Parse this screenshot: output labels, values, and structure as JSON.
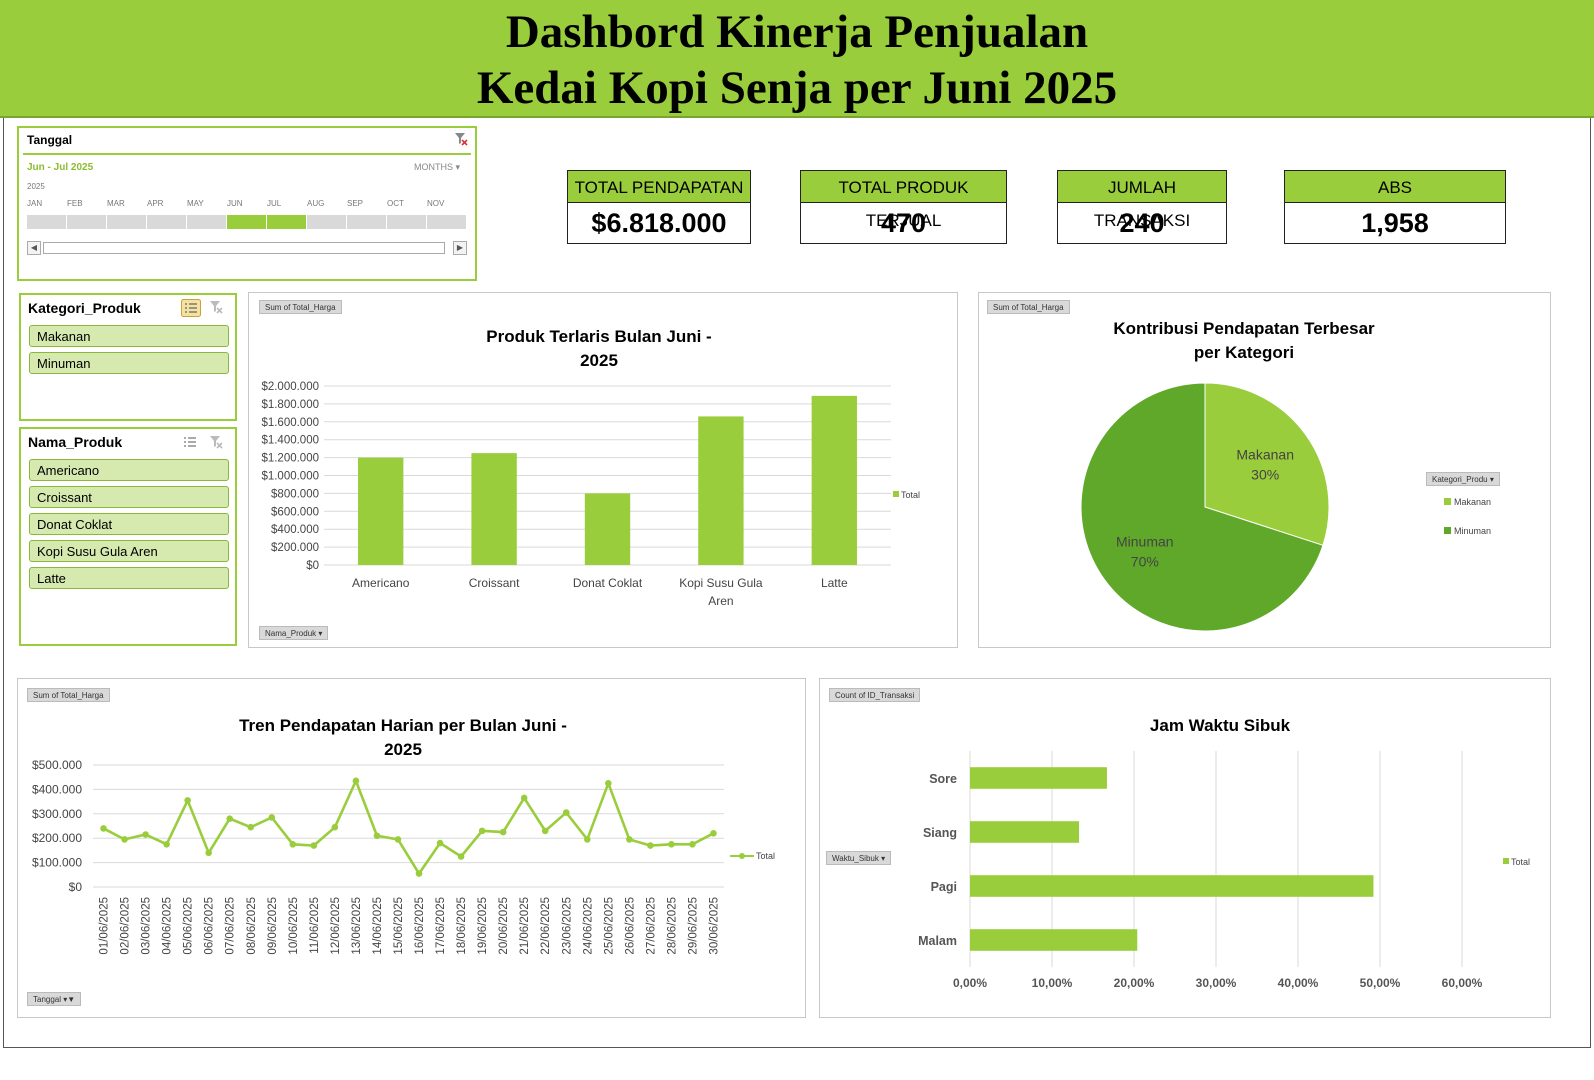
{
  "header": {
    "title_line1": "Dashbord Kinerja Penjualan",
    "title_line2": "Kedai Kopi Senja per Juni 2025"
  },
  "timeline": {
    "title": "Tanggal",
    "range": "Jun - Jul 2025",
    "level": "MONTHS",
    "year": "2025",
    "months": [
      "JAN",
      "FEB",
      "MAR",
      "APR",
      "MAY",
      "JUN",
      "JUL",
      "AUG",
      "SEP",
      "OCT",
      "NOV"
    ],
    "selected": [
      "JUN",
      "JUL"
    ]
  },
  "kpis": {
    "total_pendapatan": {
      "label": "TOTAL PENDAPATAN",
      "value": "$6.818.000"
    },
    "total_produk": {
      "label": "TOTAL PRODUK TERJUAL",
      "value": "470"
    },
    "jumlah_transaksi": {
      "label": "JUMLAH TRANSAKSI",
      "value": "240"
    },
    "abs": {
      "label": "ABS",
      "value": "1,958"
    }
  },
  "slicers": {
    "kategori": {
      "title": "Kategori_Produk",
      "items": [
        "Makanan",
        "Minuman"
      ]
    },
    "nama_produk": {
      "title": "Nama_Produk",
      "items": [
        "Americano",
        "Croissant",
        "Donat Coklat",
        "Kopi Susu Gula Aren",
        "Latte"
      ]
    }
  },
  "colors": {
    "accent": "#9acd3c",
    "accent_dark": "#5fa82a",
    "header_bg": "#9acd3c"
  },
  "icons": [
    "filter-clear-icon",
    "multi-select-icon",
    "dropdown-arrow-icon",
    "scroll-left-icon",
    "scroll-right-icon"
  ],
  "chart_data": [
    {
      "id": "bar_produk",
      "type": "bar",
      "field_button": "Sum of Total_Harga",
      "axis_button": "Nama_Produk",
      "title_line1": "Produk Terlaris Bulan Juni -",
      "title_line2": "2025",
      "categories": [
        "Americano",
        "Croissant",
        "Donat Coklat",
        "Kopi Susu Gula Aren",
        "Latte"
      ],
      "values": [
        1200000,
        1250000,
        800000,
        1660000,
        1890000
      ],
      "ylim": [
        0,
        2000000
      ],
      "yticks": [
        "$0",
        "$200.000",
        "$400.000",
        "$600.000",
        "$800.000",
        "$1.000.000",
        "$1.200.000",
        "$1.400.000",
        "$1.600.000",
        "$1.800.000",
        "$2.000.000"
      ],
      "legend": "Total",
      "legend_position": "right",
      "grid": true
    },
    {
      "id": "pie_kategori",
      "type": "pie",
      "field_button": "Sum of Total_Harga",
      "legend_button": "Kategori_Produ",
      "title_line1": "Kontribusi Pendapatan Terbesar",
      "title_line2": "per Kategori",
      "slices": [
        {
          "label": "Makanan",
          "percent_label": "30%",
          "value": 30,
          "color": "#9acd3c"
        },
        {
          "label": "Minuman",
          "percent_label": "70%",
          "value": 70,
          "color": "#5fa82a"
        }
      ],
      "legend_position": "right"
    },
    {
      "id": "line_harian",
      "type": "line",
      "field_button": "Sum of Total_Harga",
      "axis_button": "Tanggal",
      "title_line1": "Tren Pendapatan Harian  per Bulan Juni -",
      "title_line2": "2025",
      "x": [
        "01/06/2025",
        "02/06/2025",
        "03/06/2025",
        "04/06/2025",
        "05/06/2025",
        "06/06/2025",
        "07/06/2025",
        "08/06/2025",
        "09/06/2025",
        "10/06/2025",
        "11/06/2025",
        "12/06/2025",
        "13/06/2025",
        "14/06/2025",
        "15/06/2025",
        "16/06/2025",
        "17/06/2025",
        "18/06/2025",
        "19/06/2025",
        "20/06/2025",
        "21/06/2025",
        "22/06/2025",
        "23/06/2025",
        "24/06/2025",
        "25/06/2025",
        "26/06/2025",
        "27/06/2025",
        "28/06/2025",
        "29/06/2025",
        "30/06/2025"
      ],
      "values": [
        240000,
        195000,
        215000,
        175000,
        355000,
        140000,
        280000,
        245000,
        285000,
        175000,
        170000,
        245000,
        435000,
        210000,
        195000,
        55000,
        180000,
        125000,
        230000,
        225000,
        365000,
        230000,
        305000,
        195000,
        425000,
        195000,
        170000,
        175000,
        175000,
        220000
      ],
      "ylim": [
        0,
        500000
      ],
      "yticks": [
        "$0",
        "$100.000",
        "$200.000",
        "$300.000",
        "$400.000",
        "$500.000"
      ],
      "legend": "Total",
      "legend_position": "right",
      "grid": true
    },
    {
      "id": "hbar_jam",
      "type": "bar",
      "orientation": "horizontal",
      "field_button": "Count of ID_Transaksi",
      "axis_button": "Waktu_Sibuk",
      "title": "Jam Waktu Sibuk",
      "categories": [
        "Sore",
        "Siang",
        "Pagi",
        "Malam"
      ],
      "values": [
        16.7,
        13.3,
        49.2,
        20.4
      ],
      "xlim": [
        0,
        60
      ],
      "xticks": [
        "0,00%",
        "10,00%",
        "20,00%",
        "30,00%",
        "40,00%",
        "50,00%",
        "60,00%"
      ],
      "legend": "Total",
      "legend_position": "right",
      "grid": true
    }
  ]
}
